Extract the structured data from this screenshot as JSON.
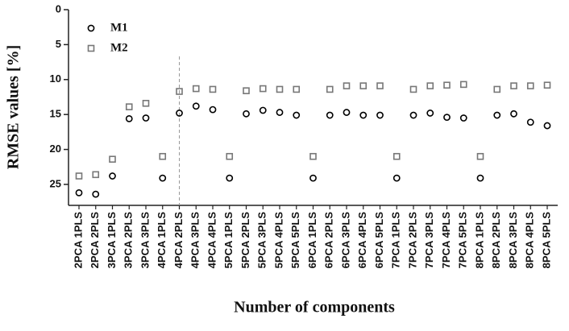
{
  "chart_data": {
    "type": "scatter",
    "xlabel": "Number of components",
    "ylabel": "RMSE values [%]",
    "categories": [
      "2PCA 1PLS",
      "2PCA 2PLS",
      "3PCA 1PLS",
      "3PCA 2PLS",
      "3PCA 3PLS",
      "4PCA 1PLS",
      "4PCA 2PLS",
      "4PCA 3PLS",
      "4PCA 4PLS",
      "5PCA 1PLS",
      "5PCA 2PLS",
      "5PCA 3PLS",
      "5PCA 4PLS",
      "5PCA 5PLS",
      "6PCA 1PLS",
      "6PCA 2PLS",
      "6PCA 3PLS",
      "6PCA 4PLS",
      "6PCA 5PLS",
      "7PCA 1PLS",
      "7PCA 2PLS",
      "7PCA 3PLS",
      "7PCA 4PLS",
      "7PCA 5PLS",
      "8PCA 1PLS",
      "8PCA 2PLS",
      "8PCA 3PLS",
      "8PCA 4PLS",
      "8PCA 5PLS"
    ],
    "series": [
      {
        "name": "M1",
        "marker": "circle",
        "color": "#000000",
        "values": [
          26.2,
          26.4,
          23.8,
          15.6,
          15.5,
          24.1,
          14.8,
          13.8,
          14.3,
          24.1,
          14.9,
          14.4,
          14.7,
          15.1,
          24.1,
          15.1,
          14.7,
          15.1,
          15.1,
          24.1,
          15.1,
          14.8,
          15.4,
          15.5,
          24.1,
          15.1,
          14.9,
          16.1,
          16.6
        ]
      },
      {
        "name": "M2",
        "marker": "square",
        "color": "#777777",
        "values": [
          23.8,
          23.6,
          21.4,
          13.9,
          13.4,
          21.0,
          11.7,
          11.3,
          11.4,
          21.0,
          11.6,
          11.3,
          11.4,
          11.4,
          21.0,
          11.4,
          10.9,
          10.9,
          10.9,
          21.0,
          11.4,
          10.9,
          10.8,
          10.7,
          21.0,
          11.4,
          10.9,
          10.9,
          10.8
        ]
      }
    ],
    "ylim": [
      0,
      28
    ],
    "yticks": [
      0,
      5,
      10,
      15,
      20,
      25
    ],
    "y_inverted": true,
    "reference_line_category_index": 6,
    "legend": "upper left"
  }
}
